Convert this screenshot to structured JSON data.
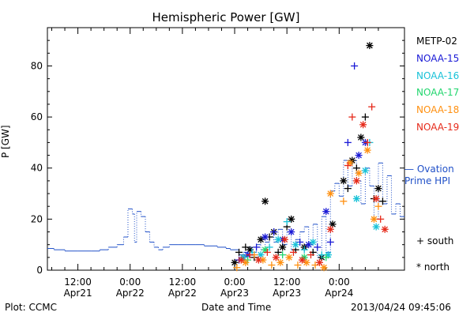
{
  "chart_data": {
    "type": "scatter",
    "title": "Hemispheric Power [GW]",
    "ylabel": "P [GW]",
    "xlabel": "Date and Time",
    "ylim": [
      0,
      95
    ],
    "yticks": [
      0,
      20,
      40,
      60,
      80
    ],
    "xrange_hours": [
      -38,
      76
    ],
    "xticks": [
      {
        "h": -24,
        "top": "12:00",
        "bottom": "Apr21"
      },
      {
        "h": 0,
        "top": "0:00",
        "bottom": "Apr22"
      },
      {
        "h": 24,
        "top": "12:00",
        "bottom": "Apr22"
      },
      {
        "h": 48,
        "top": "0:00",
        "bottom": "Apr23"
      },
      {
        "h": 72,
        "top": "12:00",
        "bottom": "Apr23"
      },
      {
        "h": 96,
        "top": "0:00",
        "bottom": "Apr24"
      }
    ],
    "ovation": {
      "name": "Ovation Prime HPI",
      "color": "#2050c8",
      "points": [
        [
          -38,
          8.5
        ],
        [
          -35,
          8
        ],
        [
          -30,
          7.5
        ],
        [
          -24,
          7.5
        ],
        [
          -18,
          7.5
        ],
        [
          -14,
          8
        ],
        [
          -10,
          9
        ],
        [
          -6,
          10
        ],
        [
          -3,
          13
        ],
        [
          -1,
          24
        ],
        [
          1,
          22
        ],
        [
          2,
          11
        ],
        [
          3,
          23
        ],
        [
          5,
          21
        ],
        [
          7,
          15
        ],
        [
          9,
          11
        ],
        [
          11,
          9
        ],
        [
          13,
          8
        ],
        [
          15,
          9
        ],
        [
          18,
          10
        ],
        [
          22,
          10
        ],
        [
          26,
          10
        ],
        [
          30,
          10
        ],
        [
          34,
          9.5
        ],
        [
          38,
          9.5
        ],
        [
          40,
          9
        ],
        [
          42,
          9
        ],
        [
          44,
          8.5
        ],
        [
          46,
          8
        ],
        [
          48,
          8
        ],
        [
          50,
          6
        ],
        [
          52,
          7
        ],
        [
          54,
          9
        ],
        [
          56,
          7
        ],
        [
          58,
          10
        ],
        [
          60,
          8
        ],
        [
          62,
          11
        ],
        [
          64,
          13
        ],
        [
          66,
          11
        ],
        [
          68,
          16
        ],
        [
          70,
          10
        ],
        [
          72,
          15
        ],
        [
          74,
          8
        ],
        [
          76,
          12
        ],
        [
          78,
          15
        ],
        [
          80,
          17
        ],
        [
          82,
          10
        ],
        [
          84,
          18
        ],
        [
          86,
          5
        ],
        [
          88,
          21
        ],
        [
          90,
          7
        ],
        [
          92,
          31
        ],
        [
          94,
          34
        ],
        [
          96,
          29
        ],
        [
          98,
          43
        ],
        [
          100,
          33
        ],
        [
          102,
          43
        ],
        [
          104,
          35
        ],
        [
          106,
          26
        ],
        [
          108,
          40
        ],
        [
          110,
          33
        ],
        [
          112,
          20
        ],
        [
          114,
          42
        ],
        [
          116,
          26
        ],
        [
          118,
          37
        ],
        [
          120,
          22
        ],
        [
          122,
          26
        ],
        [
          124,
          21
        ],
        [
          126,
          21
        ]
      ]
    },
    "series": [
      {
        "name": "METP-02",
        "color": "#000000",
        "points": [
          [
            48,
            3,
            "*"
          ],
          [
            50,
            7,
            "+"
          ],
          [
            52,
            5,
            "*"
          ],
          [
            53,
            9,
            "+"
          ],
          [
            55,
            8,
            "*"
          ],
          [
            57,
            5,
            "+"
          ],
          [
            60,
            12,
            "*"
          ],
          [
            62,
            27,
            "*"
          ],
          [
            64,
            13,
            "+"
          ],
          [
            66,
            15,
            "*"
          ],
          [
            68,
            7,
            "+"
          ],
          [
            70,
            9,
            "*"
          ],
          [
            72,
            17,
            "+"
          ],
          [
            74,
            20,
            "*"
          ],
          [
            76,
            8,
            "+"
          ],
          [
            80,
            9,
            "*"
          ],
          [
            84,
            7,
            "+"
          ],
          [
            88,
            5,
            "*"
          ],
          [
            93,
            18,
            "*"
          ],
          [
            98,
            35,
            "*"
          ],
          [
            100,
            32,
            "+"
          ],
          [
            102,
            43,
            "*"
          ],
          [
            104,
            40,
            "+"
          ],
          [
            106,
            52,
            "*"
          ],
          [
            108,
            60,
            "+"
          ],
          [
            110,
            88,
            "*"
          ],
          [
            112,
            28,
            "+"
          ],
          [
            114,
            32,
            "*"
          ],
          [
            116,
            27,
            "+"
          ]
        ]
      },
      {
        "name": "NOAA-15",
        "color": "#1a1ad6",
        "points": [
          [
            50,
            4,
            "+"
          ],
          [
            54,
            6,
            "*"
          ],
          [
            58,
            9,
            "+"
          ],
          [
            62,
            13,
            "*"
          ],
          [
            66,
            15,
            "+"
          ],
          [
            70,
            12,
            "*"
          ],
          [
            74,
            15,
            "*"
          ],
          [
            78,
            11,
            "+"
          ],
          [
            82,
            10,
            "*"
          ],
          [
            86,
            9,
            "+"
          ],
          [
            90,
            23,
            "*"
          ],
          [
            92,
            11,
            "+"
          ],
          [
            100,
            50,
            "+"
          ],
          [
            103,
            80,
            "+"
          ],
          [
            105,
            45,
            "*"
          ],
          [
            108,
            50,
            "*"
          ]
        ]
      },
      {
        "name": "NOAA-16",
        "color": "#19c2d8",
        "points": [
          [
            52,
            5,
            "*"
          ],
          [
            56,
            7,
            "+"
          ],
          [
            60,
            6,
            "*"
          ],
          [
            64,
            9,
            "+"
          ],
          [
            68,
            12,
            "*"
          ],
          [
            72,
            19,
            "+"
          ],
          [
            76,
            10,
            "*"
          ],
          [
            80,
            8,
            "+"
          ],
          [
            84,
            11,
            "*"
          ],
          [
            88,
            6,
            "+"
          ],
          [
            91,
            6,
            "*"
          ],
          [
            104,
            28,
            "*"
          ],
          [
            108,
            39,
            "*"
          ],
          [
            110,
            50,
            "+"
          ],
          [
            113,
            17,
            "*"
          ]
        ]
      },
      {
        "name": "NOAA-17",
        "color": "#22d66e",
        "points": [
          [
            54,
            4,
            "+"
          ],
          [
            62,
            8,
            "*"
          ],
          [
            70,
            6,
            "+"
          ],
          [
            80,
            5,
            "*"
          ],
          [
            90,
            5,
            "+"
          ]
        ]
      },
      {
        "name": "NOAA-18",
        "color": "#ff9010",
        "points": [
          [
            49,
            1,
            "+"
          ],
          [
            53,
            3,
            "*"
          ],
          [
            57,
            6,
            "+"
          ],
          [
            61,
            4,
            "*"
          ],
          [
            65,
            2,
            "+"
          ],
          [
            69,
            3,
            "*"
          ],
          [
            73,
            5,
            "*"
          ],
          [
            77,
            2,
            "+"
          ],
          [
            81,
            3,
            "*"
          ],
          [
            85,
            2,
            "+"
          ],
          [
            89,
            1,
            "*"
          ],
          [
            92,
            30,
            "*"
          ],
          [
            98,
            27,
            "+"
          ],
          [
            101,
            42,
            "*"
          ],
          [
            105,
            38,
            "*"
          ],
          [
            109,
            47,
            "*"
          ],
          [
            112,
            20,
            "*"
          ],
          [
            114,
            25,
            "+"
          ]
        ]
      },
      {
        "name": "NOAA-19",
        "color": "#e62a1a",
        "points": [
          [
            51,
            4,
            "*"
          ],
          [
            55,
            6,
            "+"
          ],
          [
            59,
            4,
            "*"
          ],
          [
            63,
            7,
            "+"
          ],
          [
            67,
            5,
            "*"
          ],
          [
            71,
            12,
            "*"
          ],
          [
            75,
            7,
            "+"
          ],
          [
            79,
            4,
            "*"
          ],
          [
            83,
            6,
            "+"
          ],
          [
            87,
            3,
            "*"
          ],
          [
            92,
            16,
            "*"
          ],
          [
            100,
            41,
            "+"
          ],
          [
            102,
            60,
            "+"
          ],
          [
            104,
            35,
            "*"
          ],
          [
            107,
            57,
            "*"
          ],
          [
            109,
            50,
            "+"
          ],
          [
            111,
            64,
            "+"
          ],
          [
            113,
            28,
            "*"
          ],
          [
            115,
            20,
            "+"
          ],
          [
            117,
            16,
            "*"
          ]
        ]
      }
    ],
    "markers": [
      {
        "symbol": "+",
        "label": "south"
      },
      {
        "symbol": "*",
        "label": "north"
      }
    ]
  },
  "text": {
    "title": "Hemispheric Power [GW]",
    "ylabel": "P [GW]",
    "xtitle": "Date and Time",
    "credit": "Plot: CCMC",
    "timestamp": "2013/04/24 09:45:06",
    "ovation_label_line1": "— Ovation",
    "ovation_label_line2": "Prime HPI",
    "south": "+ south",
    "north": "* north"
  }
}
